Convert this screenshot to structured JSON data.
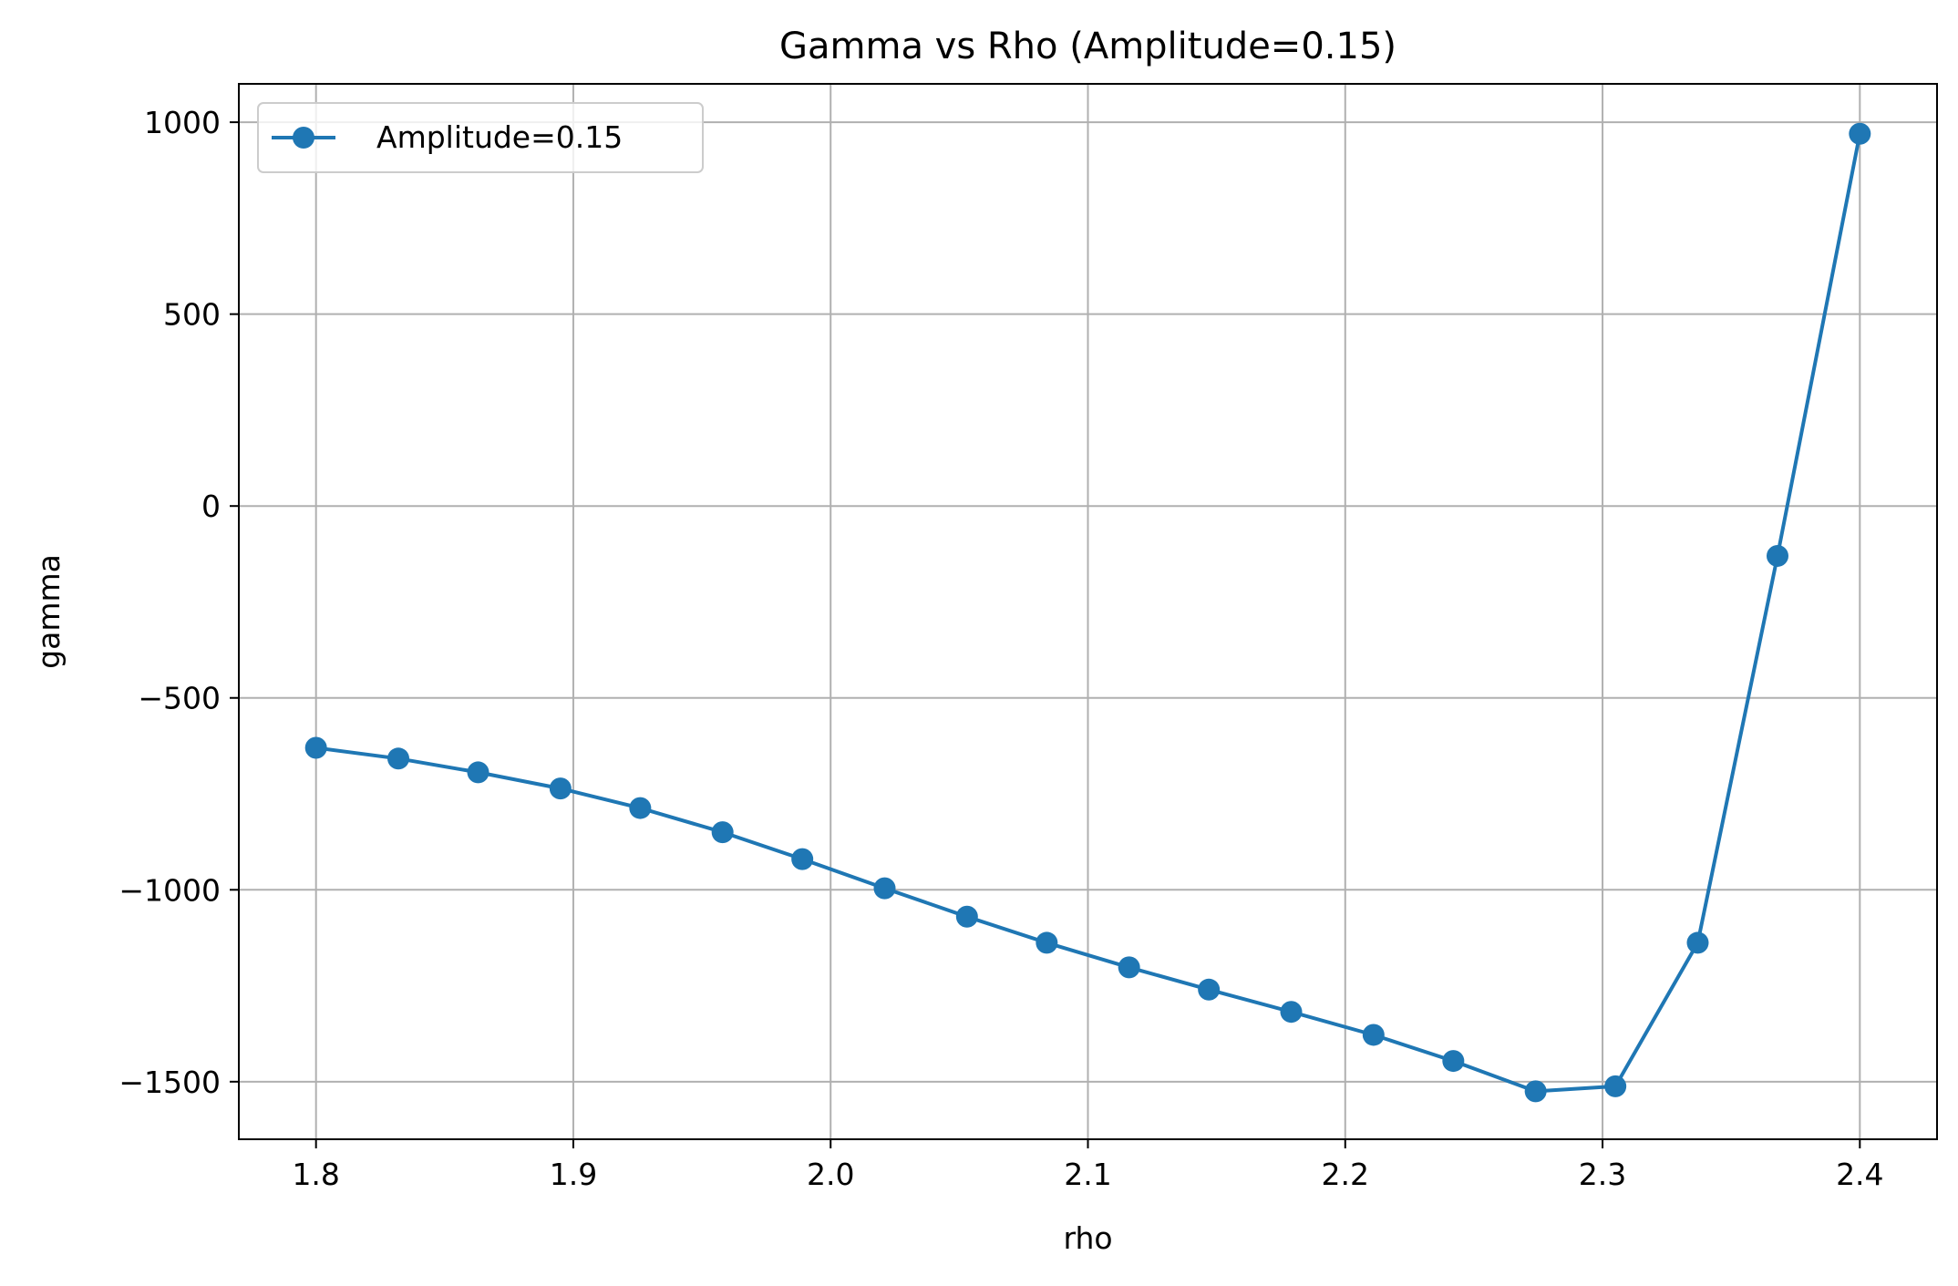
{
  "chart_data": {
    "type": "line",
    "title": "Gamma vs Rho (Amplitude=0.15)",
    "xlabel": "rho",
    "ylabel": "gamma",
    "xlim": [
      1.77,
      2.43
    ],
    "ylim": [
      -1650,
      1100
    ],
    "xticks": [
      1.8,
      1.9,
      2.0,
      2.1,
      2.2,
      2.3,
      2.4
    ],
    "xtick_labels": [
      "1.8",
      "1.9",
      "2.0",
      "2.1",
      "2.2",
      "2.3",
      "2.4"
    ],
    "yticks": [
      1000,
      500,
      0,
      -500,
      -1000,
      -1500
    ],
    "ytick_labels": [
      "1000",
      "500",
      "0",
      "−500",
      "−1000",
      "−1500"
    ],
    "grid": true,
    "legend_position": "top-left",
    "series": [
      {
        "name": "Amplitude=0.15",
        "color": "#1f77b4",
        "marker": "circle",
        "x": [
          1.8,
          1.832,
          1.863,
          1.895,
          1.926,
          1.958,
          1.989,
          2.021,
          2.053,
          2.084,
          2.116,
          2.147,
          2.179,
          2.211,
          2.242,
          2.274,
          2.305,
          2.337,
          2.368,
          2.4
        ],
        "y": [
          -630,
          -658,
          -694,
          -736,
          -787,
          -850,
          -920,
          -996,
          -1070,
          -1138,
          -1202,
          -1260,
          -1318,
          -1378,
          -1446,
          -1525,
          -1512,
          -1138,
          -130,
          970
        ]
      }
    ]
  }
}
